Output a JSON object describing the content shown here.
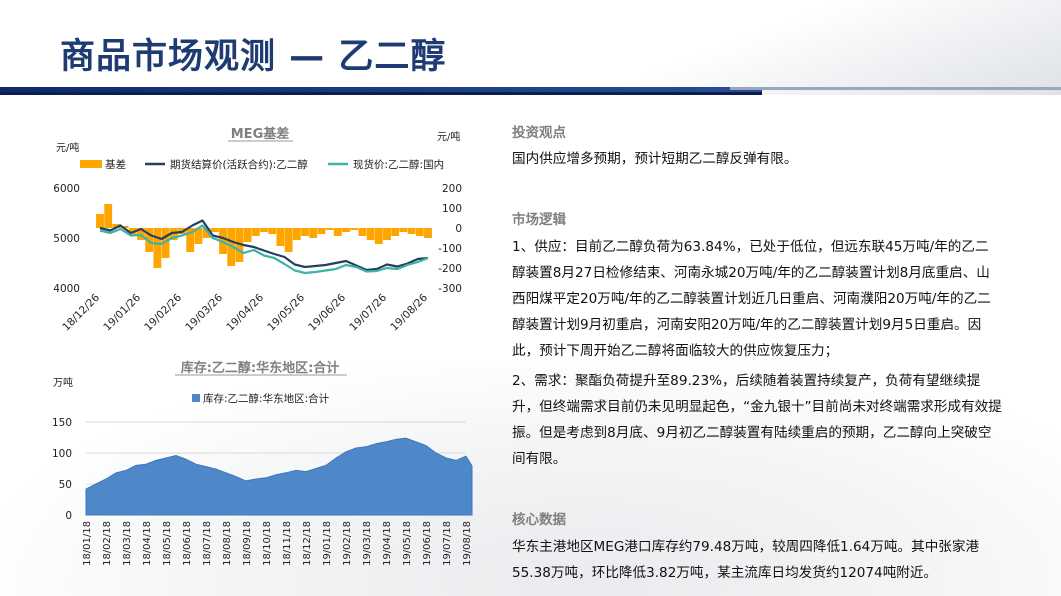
{
  "page": {
    "title": "商品市场观测 — 乙二醇"
  },
  "sections": {
    "invest_title": "投资观点",
    "invest_text": "国内供应增多预期，预计短期乙二醇反弹有限。",
    "logic_title": "市场逻辑",
    "logic_supply": "1、供应：目前乙二醇负荷为63.84%，已处于低位，但远东联45万吨/年的乙二醇装置8月27日检修结束、河南永城20万吨/年的乙二醇装置计划8月底重启、山西阳煤平定20万吨/年的乙二醇装置计划近几日重启、河南濮阳20万吨/年的乙二醇装置计划9月初重启，河南安阳20万吨/年的乙二醇装置计划9月5日重启。因此，预计下周开始乙二醇将面临较大的供应恢复压力；",
    "logic_demand": "2、需求：聚酯负荷提升至89.23%，后续随着装置持续复产，负荷有望继续提升，但终端需求目前仍未见明显起色，“金九银十”目前尚未对终端需求形成有效提振。但是考虑到8月底、9月初乙二醇装置有陆续重启的预期，乙二醇向上突破空间有限。",
    "core_title": "核心数据",
    "core_text": "华东主港地区MEG港口库存约79.48万吨，较周四降低1.64万吨。其中张家港55.38万吨，环比降低3.82万吨，某主流库日均发货约12074吨附近。"
  },
  "colors": {
    "brand": "#1f3b73",
    "basis": "#ffa500",
    "futures": "#243f60",
    "spot": "#3bb3a6",
    "inventory": "#4e88c9"
  },
  "chart_data": [
    {
      "type": "line",
      "title": "MEG基差",
      "ylabel": "元/吨",
      "y2label": "元/吨",
      "ylim": [
        4000,
        6000
      ],
      "y2lim": [
        -300,
        200
      ],
      "yticks": [
        "6000",
        "5000",
        "4000"
      ],
      "y2ticks": [
        "200",
        "100",
        "0",
        "-100",
        "-200",
        "-300"
      ],
      "categories": [
        "18/12/26",
        "19/01/26",
        "19/02/26",
        "19/03/26",
        "19/04/26",
        "19/05/26",
        "19/06/26",
        "19/07/26",
        "19/08/26"
      ],
      "legend_position": "top",
      "series": [
        {
          "name": "基差",
          "type": "bar",
          "axis": "right",
          "x": [
            0.0,
            0.2,
            0.4,
            0.6,
            0.8,
            1.0,
            1.2,
            1.4,
            1.6,
            1.8,
            2.0,
            2.2,
            2.4,
            2.6,
            2.8,
            3.0,
            3.2,
            3.4,
            3.6,
            3.8,
            4.0,
            4.2,
            4.4,
            4.6,
            4.8,
            5.0,
            5.2,
            5.4,
            5.6,
            5.8,
            6.0,
            6.2,
            6.4,
            6.6,
            6.8,
            7.0,
            7.2,
            7.4,
            7.6,
            7.8,
            8.0
          ],
          "values": [
            70,
            120,
            20,
            10,
            -40,
            -60,
            -120,
            -200,
            -150,
            -60,
            -30,
            -120,
            -80,
            -50,
            -20,
            -130,
            -190,
            -170,
            -70,
            -40,
            -20,
            -30,
            -90,
            -120,
            -60,
            -40,
            -50,
            -30,
            -10,
            -40,
            -20,
            -10,
            -40,
            -60,
            -80,
            -60,
            -40,
            -20,
            -30,
            -40,
            -50
          ]
        },
        {
          "name": "期货结算价(活跃合约):乙二醇",
          "type": "line",
          "axis": "left",
          "x": [
            0.0,
            0.25,
            0.5,
            0.75,
            1.0,
            1.25,
            1.5,
            1.75,
            2.0,
            2.25,
            2.5,
            2.75,
            3.0,
            3.25,
            3.5,
            3.75,
            4.0,
            4.25,
            4.5,
            4.75,
            5.0,
            5.25,
            5.5,
            5.75,
            6.0,
            6.25,
            6.5,
            6.75,
            7.0,
            7.25,
            7.5,
            7.75,
            8.0
          ],
          "values": [
            5200,
            5150,
            5250,
            5100,
            5180,
            5050,
            4980,
            5100,
            5120,
            5250,
            5350,
            5050,
            5000,
            4920,
            4860,
            4820,
            4750,
            4680,
            4620,
            4470,
            4420,
            4440,
            4460,
            4500,
            4540,
            4450,
            4360,
            4380,
            4470,
            4430,
            4490,
            4580,
            4600
          ]
        },
        {
          "name": "现货价:乙二醇:国内",
          "type": "line",
          "axis": "left",
          "x": [
            0.0,
            0.25,
            0.5,
            0.75,
            1.0,
            1.25,
            1.5,
            1.75,
            2.0,
            2.25,
            2.5,
            2.75,
            3.0,
            3.25,
            3.5,
            3.75,
            4.0,
            4.25,
            4.5,
            4.75,
            5.0,
            5.25,
            5.5,
            5.75,
            6.0,
            6.25,
            6.5,
            6.75,
            7.0,
            7.25,
            7.5,
            7.75,
            8.0
          ],
          "values": [
            5150,
            5100,
            5180,
            5050,
            5060,
            4900,
            4880,
            5000,
            5050,
            5120,
            5250,
            5000,
            4920,
            4820,
            4700,
            4760,
            4650,
            4600,
            4480,
            4350,
            4300,
            4320,
            4350,
            4380,
            4460,
            4420,
            4330,
            4340,
            4400,
            4380,
            4460,
            4520,
            4600
          ]
        }
      ]
    },
    {
      "type": "area",
      "title": "库存:乙二醇:华东地区:合计",
      "ylabel": "万吨",
      "ylim": [
        0,
        150
      ],
      "yticks": [
        "150",
        "100",
        "50",
        "0"
      ],
      "legend_position": "top",
      "categories": [
        "18/01/18",
        "18/02/18",
        "18/03/18",
        "18/04/18",
        "18/05/18",
        "18/06/18",
        "18/07/18",
        "18/08/18",
        "18/09/18",
        "18/10/18",
        "18/11/18",
        "18/12/18",
        "19/01/18",
        "19/02/18",
        "19/03/18",
        "19/04/18",
        "19/05/18",
        "19/06/18",
        "19/07/18",
        "19/08/18"
      ],
      "series": [
        {
          "name": "库存:乙二醇:华东地区:合计",
          "x": [
            0,
            0.5,
            1,
            1.5,
            2,
            2.5,
            3,
            3.5,
            4,
            4.5,
            5,
            5.5,
            6,
            6.5,
            7,
            7.5,
            8,
            8.5,
            9,
            9.5,
            10,
            10.5,
            11,
            11.5,
            12,
            12.5,
            13,
            13.5,
            14,
            14.5,
            15,
            15.5,
            16,
            16.5,
            17,
            17.5,
            18,
            18.5,
            19,
            19.3
          ],
          "values": [
            42,
            50,
            58,
            68,
            72,
            80,
            82,
            88,
            92,
            96,
            90,
            82,
            78,
            74,
            68,
            62,
            55,
            58,
            60,
            65,
            68,
            72,
            70,
            75,
            80,
            92,
            102,
            108,
            110,
            115,
            118,
            122,
            124,
            118,
            112,
            100,
            92,
            88,
            95,
            79
          ]
        }
      ]
    }
  ]
}
